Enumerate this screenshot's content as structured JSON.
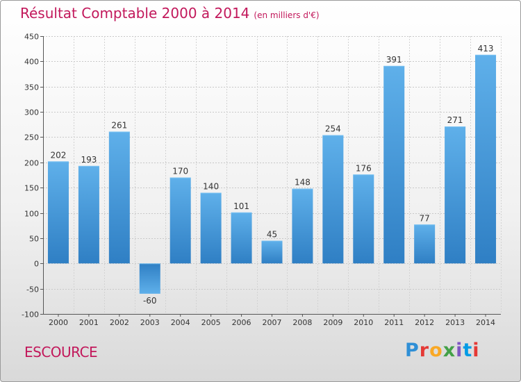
{
  "chart_data": {
    "type": "bar",
    "title": "Résultat Comptable 2000 à 2014",
    "subtitle": "(en milliers d'€)",
    "categories": [
      "2000",
      "2001",
      "2002",
      "2003",
      "2004",
      "2005",
      "2006",
      "2007",
      "2008",
      "2009",
      "2010",
      "2011",
      "2012",
      "2013",
      "2014"
    ],
    "values": [
      202,
      193,
      261,
      -60,
      170,
      140,
      101,
      45,
      148,
      254,
      176,
      391,
      77,
      271,
      413
    ],
    "ylim": [
      -100,
      450
    ],
    "yticks": [
      -100,
      -50,
      0,
      50,
      100,
      150,
      200,
      250,
      300,
      350,
      400,
      450
    ],
    "xlabel": "",
    "ylabel": "",
    "grid": true,
    "bar_color": "#3a8fd4"
  },
  "footer": {
    "commune": "ESCOURCE",
    "logo": "Proxiti"
  }
}
